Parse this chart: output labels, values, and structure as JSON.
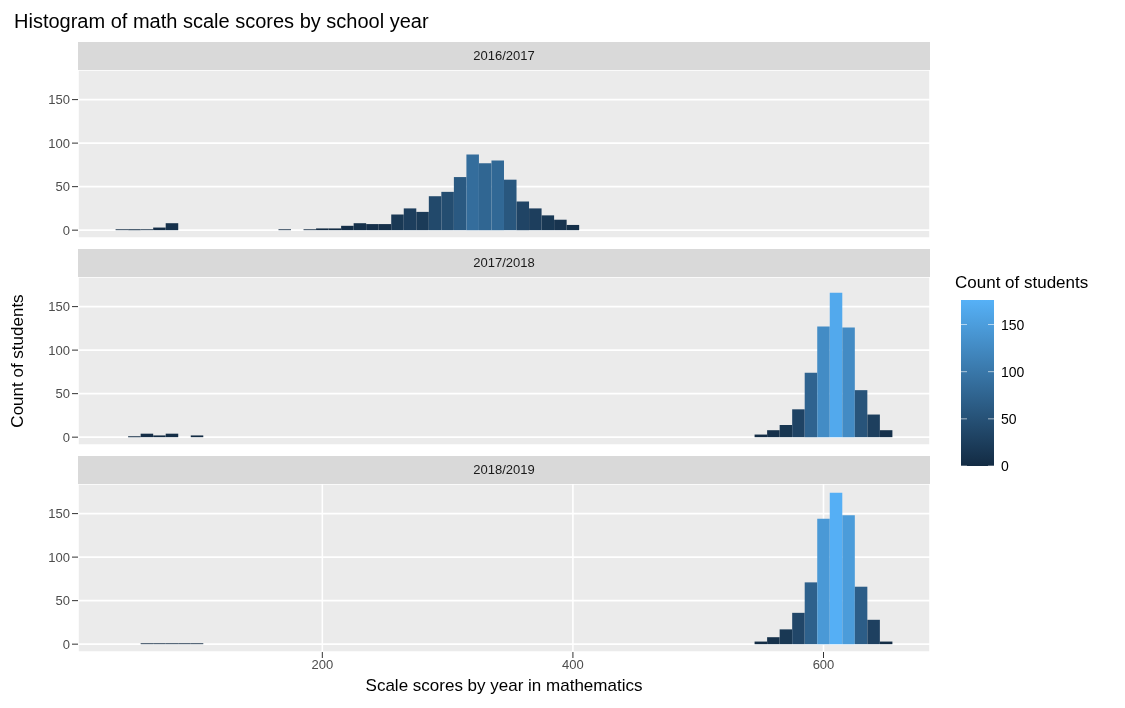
{
  "chart_data": [
    {
      "type": "histogram",
      "title": "Histogram of math scale scores by school year",
      "subtitle": "2016/2017",
      "clabel": "Count of students",
      "clim": [
        0,
        176
      ],
      "cticks": [
        0,
        50,
        100,
        150
      ],
      "bins": [
        35,
        45,
        55,
        65,
        75,
        85,
        95,
        105,
        115,
        125,
        135,
        145,
        155,
        165,
        175,
        185,
        195,
        205,
        215,
        225,
        235,
        245,
        255,
        265,
        275,
        285,
        295,
        305,
        315,
        325,
        335,
        345,
        355,
        365,
        375,
        385,
        395,
        405
      ],
      "values": [
        1,
        1,
        1,
        3,
        8,
        0,
        0,
        0,
        0,
        0,
        0,
        0,
        0,
        1,
        0,
        1,
        2,
        2,
        5,
        8,
        7,
        7,
        18,
        25,
        21,
        39,
        44,
        61,
        87,
        77,
        80,
        58,
        33,
        25,
        17,
        12,
        6
      ],
      "xlim": [
        5,
        685
      ],
      "xticks": [
        200,
        400,
        600
      ],
      "ylim": [
        -9,
        184
      ],
      "yticks": [
        0,
        50,
        100,
        150
      ],
      "grid": true,
      "tick_labels": "y"
    },
    {
      "type": "histogram",
      "subtitle": "2017/2018",
      "ylabel": "Count of students",
      "bins": [
        45,
        55,
        65,
        75,
        85,
        95,
        105,
        115,
        125,
        135,
        145,
        155,
        165,
        175,
        185,
        195,
        205,
        215,
        225,
        235,
        245,
        255,
        265,
        275,
        285,
        295,
        305,
        315,
        325,
        335,
        345,
        355,
        365,
        375,
        385,
        395,
        405,
        415,
        425,
        435,
        445,
        455,
        465,
        475,
        485,
        495,
        505,
        515,
        525,
        535,
        545,
        555,
        565,
        575,
        585,
        595,
        605,
        615,
        625,
        635,
        645,
        655
      ],
      "values": [
        1,
        4,
        2,
        4,
        0,
        2,
        0,
        0,
        0,
        0,
        0,
        0,
        0,
        0,
        0,
        0,
        0,
        0,
        0,
        0,
        0,
        0,
        0,
        0,
        0,
        0,
        0,
        0,
        0,
        0,
        0,
        0,
        0,
        0,
        0,
        0,
        0,
        0,
        0,
        0,
        0,
        0,
        0,
        0,
        0,
        0,
        0,
        0,
        0,
        0,
        3,
        8,
        14,
        32,
        74,
        127,
        166,
        126,
        54,
        26,
        8
      ],
      "xlim": [
        5,
        685
      ],
      "xticks": [
        200,
        400,
        600
      ],
      "ylim": [
        -9,
        184
      ],
      "yticks": [
        0,
        50,
        100,
        150
      ],
      "grid": true,
      "tick_labels": "y"
    },
    {
      "type": "histogram",
      "subtitle": "2018/2019",
      "xlabel": "Scale scores by year in mathematics",
      "bins": [
        55,
        65,
        75,
        85,
        95,
        105,
        115,
        125,
        135,
        145,
        155,
        165,
        175,
        185,
        195,
        205,
        215,
        225,
        235,
        245,
        255,
        265,
        275,
        285,
        295,
        305,
        315,
        325,
        335,
        345,
        355,
        365,
        375,
        385,
        395,
        405,
        415,
        425,
        435,
        445,
        455,
        465,
        475,
        485,
        495,
        505,
        515,
        525,
        535,
        545,
        555,
        565,
        575,
        585,
        595,
        605,
        615,
        625,
        635,
        645,
        655
      ],
      "values": [
        1,
        1,
        1,
        1,
        1,
        0,
        0,
        0,
        0,
        0,
        0,
        0,
        0,
        0,
        0,
        0,
        0,
        0,
        0,
        0,
        0,
        0,
        0,
        0,
        0,
        0,
        0,
        0,
        0,
        0,
        0,
        0,
        0,
        0,
        0,
        0,
        0,
        0,
        0,
        0,
        0,
        0,
        0,
        0,
        0,
        0,
        0,
        0,
        0,
        3,
        8,
        17,
        36,
        71,
        144,
        174,
        148,
        66,
        28,
        3
      ],
      "xlim": [
        5,
        685
      ],
      "xticks": [
        200,
        400,
        600
      ],
      "ylim": [
        -9,
        184
      ],
      "yticks": [
        0,
        50,
        100,
        150
      ],
      "grid": true
    }
  ]
}
